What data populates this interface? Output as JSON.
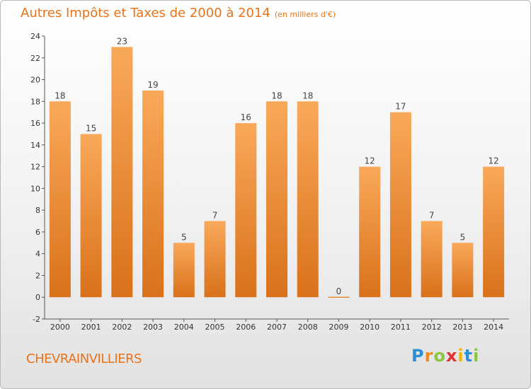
{
  "title": "Autres Impôts et Taxes de 2000 à 2014",
  "title_unit": "(en milliers d'€)",
  "place": "CHEVRAINVILLIERS",
  "logo_text": "Proxiti",
  "colors": {
    "bar_top": "#f9a95a",
    "bar_bottom": "#d9711b",
    "accent": "#e8731a"
  },
  "chart_data": {
    "type": "bar",
    "categories": [
      "2000",
      "2001",
      "2002",
      "2003",
      "2004",
      "2005",
      "2006",
      "2007",
      "2008",
      "2009",
      "2010",
      "2011",
      "2012",
      "2013",
      "2014"
    ],
    "values": [
      18,
      15,
      23,
      19,
      5,
      7,
      16,
      18,
      18,
      0,
      12,
      17,
      7,
      5,
      12
    ],
    "title": "Autres Impôts et Taxes de 2000 à 2014",
    "xlabel": "",
    "ylabel": "",
    "ylim": [
      -2,
      24
    ],
    "yticks": [
      -2,
      0,
      2,
      4,
      6,
      8,
      10,
      12,
      14,
      16,
      18,
      20,
      22,
      24
    ],
    "grid": false,
    "legend": "none"
  }
}
